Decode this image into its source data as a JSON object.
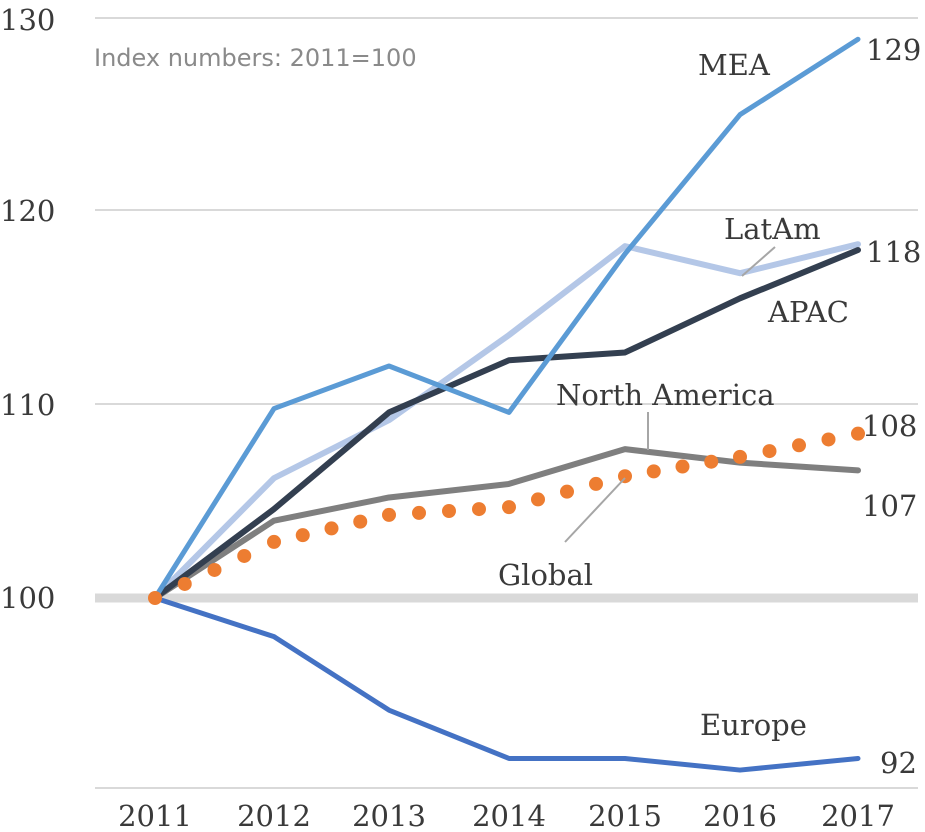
{
  "chart_data": {
    "type": "line",
    "subtitle": "Index numbers: 2011=100",
    "x": [
      "2011",
      "2012",
      "2013",
      "2014",
      "2015",
      "2016",
      "2017"
    ],
    "ylim": [
      90,
      130
    ],
    "yticks": [
      "130",
      "120",
      "110",
      "100"
    ],
    "series": [
      {
        "key": "mea",
        "name": "MEA",
        "color": "#5b9bd5",
        "values": [
          100,
          109.8,
          112,
          109.6,
          117.8,
          125,
          128.9
        ],
        "end_label": "129"
      },
      {
        "key": "latam",
        "name": "LatAm",
        "color": "#b4c7e7",
        "values": [
          100,
          106.2,
          109.2,
          113.6,
          118.2,
          116.8,
          118.3
        ],
        "end_label": "118"
      },
      {
        "key": "apac",
        "name": "APAC",
        "color": "#333f50",
        "values": [
          100,
          104.6,
          109.6,
          112.3,
          112.7,
          115.5,
          118
        ],
        "end_label": ""
      },
      {
        "key": "na",
        "name": "North America",
        "color": "#7f7f7f",
        "values": [
          100,
          104,
          105.2,
          105.9,
          107.7,
          107,
          106.6
        ],
        "end_label": "107"
      },
      {
        "key": "global",
        "name": "Global",
        "color": "#ed7d31",
        "values": [
          100,
          102.9,
          104.3,
          104.7,
          106.3,
          107.3,
          108.5
        ],
        "end_label": "108"
      },
      {
        "key": "europe",
        "name": "Europe",
        "color": "#4472c4",
        "values": [
          100,
          98,
          94.2,
          91.7,
          91.7,
          91.1,
          91.7
        ],
        "end_label": "92"
      }
    ]
  }
}
